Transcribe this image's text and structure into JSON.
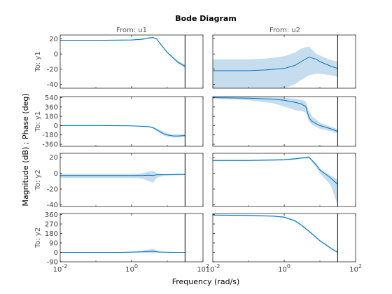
{
  "figure": {
    "title": "Bode Diagram",
    "xlabel": "Frequency  (rad/s)",
    "ylabel": "Magnitude (dB) ; Phase (deg)"
  },
  "colors": {
    "line": "#0072BD",
    "band": "#C5DDEF",
    "axis": "#262626",
    "tick_text": "#404040",
    "marker": "#000000"
  },
  "chart_data": {
    "type": "line",
    "x_scale": "log",
    "xlim": [
      0.01,
      100
    ],
    "x_ticks": [
      0.01,
      1,
      100
    ],
    "x_tick_labels": [
      "10^-2",
      "10^0",
      "10^2"
    ],
    "columns": [
      "From: u1",
      "From: u2"
    ],
    "rows": [
      "To: y1",
      "To: y1",
      "To: y2",
      "To: y2"
    ],
    "row_quantities": [
      "Magnitude (dB)",
      "Phase (deg)",
      "Magnitude (dB)",
      "Phase (deg)"
    ],
    "nyquist_frequency": 31.4,
    "row_axes": [
      {
        "ylim": [
          -45,
          25
        ],
        "y_ticks": [
          20,
          0,
          -20,
          -40
        ],
        "y_tick_labels": [
          "20",
          "0",
          "-20",
          "-40"
        ]
      },
      {
        "ylim": [
          -400,
          560
        ],
        "y_ticks": [
          540,
          360,
          180,
          0,
          -180,
          -360
        ],
        "y_tick_labels": [
          "540",
          "360",
          "180",
          "0",
          "-180",
          "-360"
        ]
      },
      {
        "ylim": [
          -42,
          25
        ],
        "y_ticks": [
          20,
          0,
          -20,
          -40
        ],
        "y_tick_labels": [
          "20",
          "0",
          "-20",
          "-40"
        ]
      },
      {
        "ylim": [
          -90,
          370
        ],
        "y_ticks": [
          360,
          270,
          180,
          90,
          0,
          -90
        ],
        "y_tick_labels": [
          "360",
          "270",
          "180",
          "90",
          "0",
          "-90"
        ]
      }
    ],
    "panels": [
      {
        "row": 0,
        "col": 0,
        "x": [
          0.01,
          0.1,
          1,
          2,
          3,
          4,
          5,
          7,
          10,
          20,
          31.4
        ],
        "y": [
          18,
          18,
          18.5,
          19.5,
          21,
          21.5,
          20,
          11,
          2,
          -11,
          -16
        ],
        "upper": [
          18.5,
          18.5,
          19,
          20.5,
          22,
          22.5,
          21,
          12,
          3,
          -9,
          -14
        ],
        "lower": [
          17.5,
          17.5,
          18,
          18.5,
          20,
          20.5,
          19,
          10,
          1,
          -13,
          -19
        ]
      },
      {
        "row": 0,
        "col": 1,
        "x": [
          0.01,
          0.1,
          0.3,
          1,
          2,
          3,
          5,
          8,
          10,
          20,
          31.4
        ],
        "y": [
          -22,
          -22,
          -21,
          -19,
          -15,
          -10,
          -4,
          -7,
          -10,
          -16,
          -19
        ],
        "upper": [
          -7,
          -7,
          -6,
          -3,
          2,
          7,
          10,
          0,
          -2,
          -8,
          -10
        ],
        "lower": [
          -45,
          -45,
          -45,
          -45,
          -40,
          -34,
          -28,
          -26,
          -26,
          -28,
          -30
        ]
      },
      {
        "row": 1,
        "col": 0,
        "x": [
          0.01,
          0.1,
          1,
          3,
          4,
          6,
          8,
          10,
          15,
          20,
          31.4
        ],
        "y": [
          0,
          0,
          -5,
          -20,
          -40,
          -110,
          -160,
          -180,
          -200,
          -200,
          -190
        ],
        "upper": [
          5,
          5,
          2,
          -8,
          -25,
          -80,
          -120,
          -150,
          -170,
          -170,
          -160
        ],
        "lower": [
          -5,
          -5,
          -12,
          -32,
          -55,
          -140,
          -190,
          -215,
          -230,
          -230,
          -220
        ]
      },
      {
        "row": 1,
        "col": 1,
        "x": [
          0.01,
          0.1,
          0.5,
          1,
          2,
          3,
          4,
          5,
          6,
          10,
          20,
          31.4
        ],
        "y": [
          540,
          530,
          510,
          490,
          450,
          420,
          370,
          150,
          80,
          0,
          -60,
          -110
        ],
        "upper": [
          560,
          555,
          545,
          540,
          520,
          500,
          470,
          280,
          180,
          60,
          -20,
          -70
        ],
        "lower": [
          520,
          490,
          430,
          370,
          300,
          280,
          260,
          80,
          20,
          -60,
          -110,
          -150
        ]
      },
      {
        "row": 2,
        "col": 0,
        "x": [
          0.01,
          0.1,
          0.5,
          1,
          2,
          3,
          4,
          5,
          8,
          10,
          31.4
        ],
        "y": [
          -3,
          -3,
          -3,
          -3,
          -3,
          -2.5,
          -3,
          -2,
          -2,
          -2,
          -1.5
        ],
        "upper": [
          -1,
          -1,
          -1,
          -1,
          0,
          2,
          3,
          0,
          -1,
          -1,
          -0.5
        ],
        "lower": [
          -6,
          -6,
          -6,
          -6,
          -7,
          -10,
          -12,
          -6,
          -3,
          -3,
          -2.5
        ]
      },
      {
        "row": 2,
        "col": 1,
        "x": [
          0.01,
          0.1,
          0.5,
          1,
          2,
          3,
          5,
          6,
          8,
          10,
          20,
          31.4
        ],
        "y": [
          16,
          16,
          16.5,
          17,
          18,
          19,
          20,
          16,
          10,
          4,
          -6,
          -14
        ],
        "upper": [
          17,
          17,
          17.5,
          18,
          19,
          20,
          21.5,
          17.5,
          12,
          6,
          -3,
          -8
        ],
        "lower": [
          15,
          15,
          15.5,
          16,
          17,
          18,
          18.5,
          14,
          7,
          0,
          -15,
          -40
        ]
      },
      {
        "row": 3,
        "col": 0,
        "x": [
          0.01,
          0.1,
          0.5,
          1,
          2,
          3,
          4,
          5,
          6,
          10,
          20,
          31.4
        ],
        "y": [
          0,
          0,
          0,
          2,
          5,
          8,
          10,
          6,
          3,
          1,
          0,
          0
        ],
        "upper": [
          3,
          3,
          4,
          8,
          18,
          26,
          35,
          20,
          10,
          5,
          2,
          2
        ],
        "lower": [
          -2,
          -2,
          -2,
          -1,
          -3,
          -8,
          -10,
          -5,
          -2,
          -1,
          -1,
          -1
        ]
      },
      {
        "row": 3,
        "col": 1,
        "x": [
          0.01,
          0.1,
          0.5,
          1,
          2,
          3,
          5,
          8,
          10,
          15,
          20,
          31.4
        ],
        "y": [
          355,
          352,
          345,
          335,
          300,
          260,
          200,
          140,
          110,
          70,
          40,
          0
        ],
        "upper": [
          360,
          358,
          352,
          342,
          308,
          268,
          210,
          150,
          120,
          80,
          50,
          10
        ],
        "lower": [
          350,
          346,
          338,
          328,
          292,
          252,
          190,
          130,
          100,
          60,
          30,
          -10
        ]
      }
    ]
  }
}
